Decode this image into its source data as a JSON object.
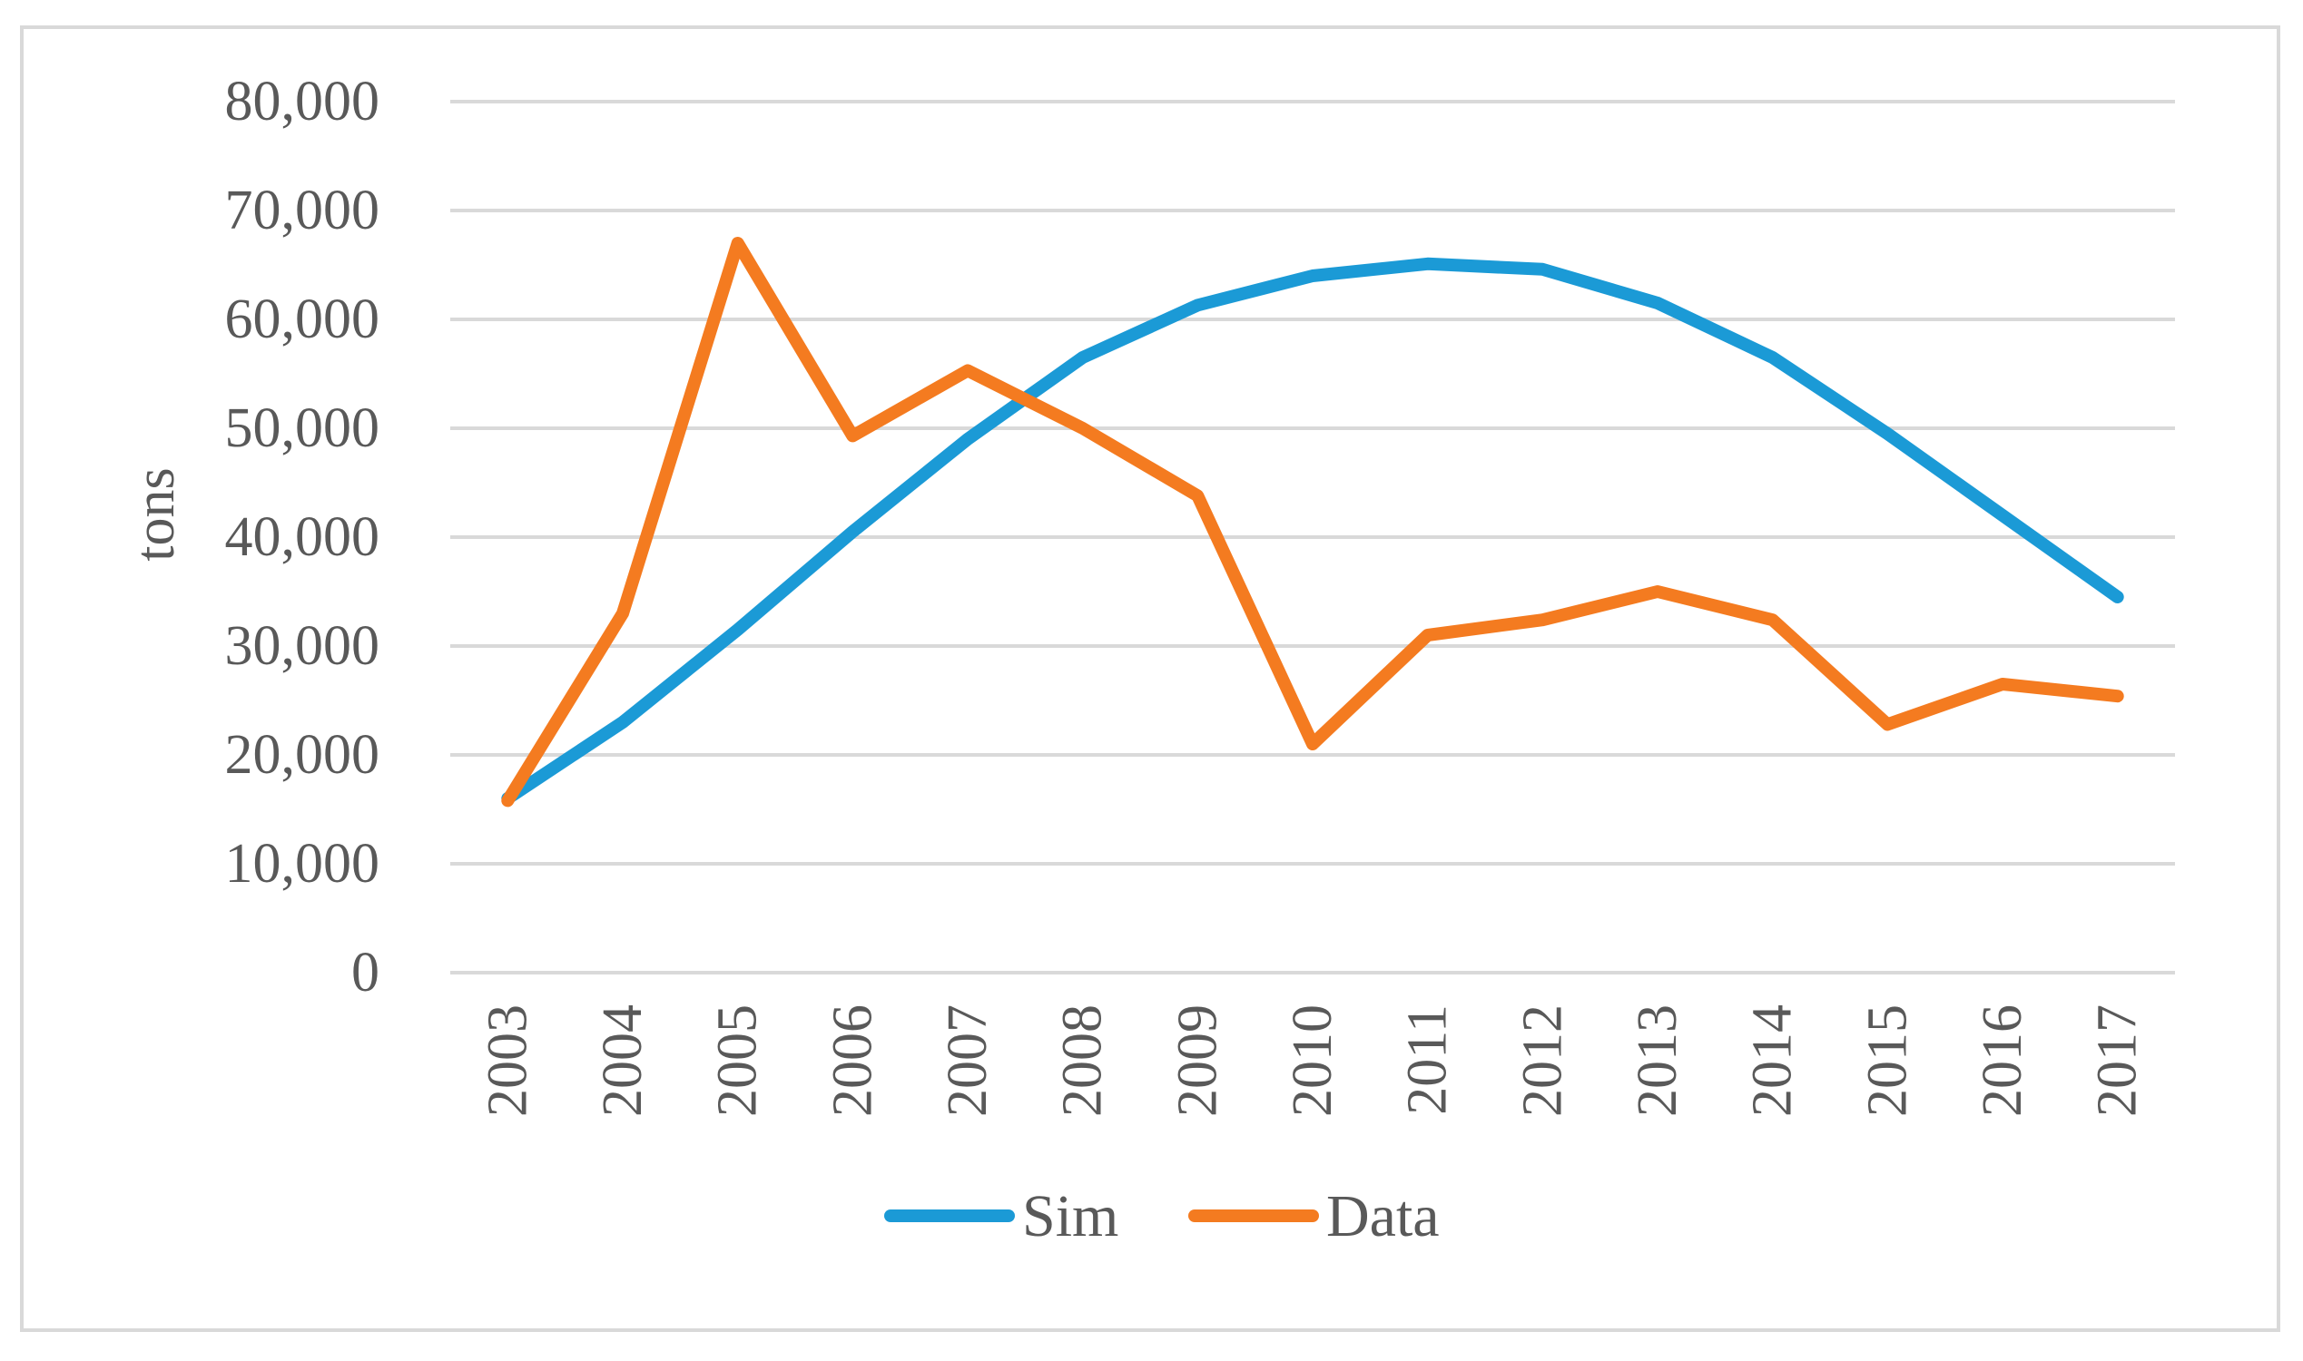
{
  "chart_data": {
    "type": "line",
    "title": "",
    "xlabel": "",
    "ylabel": "tons",
    "categories": [
      "2003",
      "2004",
      "2005",
      "2006",
      "2007",
      "2008",
      "2009",
      "2010",
      "2011",
      "2012",
      "2013",
      "2014",
      "2015",
      "2016",
      "2017"
    ],
    "ylim": [
      0,
      80000
    ],
    "yticks": [
      0,
      10000,
      20000,
      30000,
      40000,
      50000,
      60000,
      70000,
      80000
    ],
    "ytick_labels": [
      "0",
      "10,000",
      "20,000",
      "30,000",
      "40,000",
      "50,000",
      "60,000",
      "70,000",
      "80,000"
    ],
    "grid": true,
    "legend_position": "bottom",
    "series": [
      {
        "name": "Sim",
        "color": "#1b9ad6",
        "values": [
          16000,
          23000,
          31500,
          40500,
          49000,
          56500,
          61300,
          64000,
          65100,
          64600,
          61500,
          56500,
          49500,
          42000,
          34500
        ]
      },
      {
        "name": "Data",
        "color": "#f47b20",
        "values": [
          15800,
          33000,
          67000,
          49300,
          55300,
          50000,
          43800,
          21000,
          31000,
          32400,
          35000,
          32400,
          22800,
          26500,
          25400
        ]
      }
    ]
  }
}
